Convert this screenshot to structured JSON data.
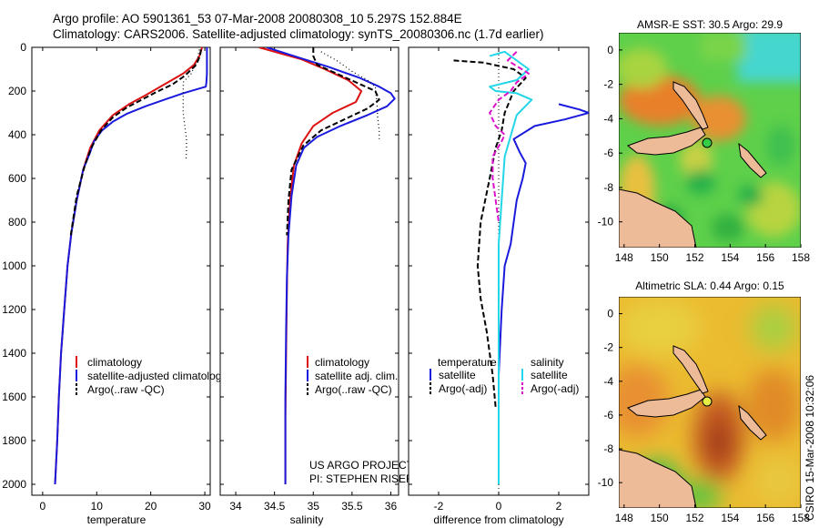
{
  "header": {
    "line1": "Argo profile: AO 5901361_53 07-Mar-2008 20080308_10 5.297S 152.884E",
    "line2": "Climatology: CARS2006. Satellite-adjusted climatology: synTS_20080306.nc (1.7d earlier)"
  },
  "side_stamp": "CSIRO 15-Mar-2008 10:32:06",
  "colors": {
    "climatology": "#dd1111",
    "satellite": "#1a1adc",
    "argo": "#000000",
    "sat_salinity": "#22d6e8",
    "argo_salinity": "#dd11cc",
    "land": "#eebb99",
    "deep_red": "#b8401a",
    "map_green": "#39c94a",
    "map_cyan": "#40d6d6"
  },
  "chart_data": [
    {
      "type": "line",
      "name": "temperature-profile",
      "xlabel": "temperature",
      "ylabel": "",
      "xlim": [
        -2,
        31
      ],
      "ylim": [
        2050,
        0
      ],
      "xticks": [
        0,
        10,
        20,
        30
      ],
      "yticks": [
        0,
        200,
        400,
        600,
        800,
        1000,
        1200,
        1400,
        1600,
        1800,
        2000
      ],
      "legend": [
        "climatology",
        "satellite-adjusted climatology",
        "Argo(..raw -QC)"
      ],
      "series": [
        {
          "name": "climatology",
          "color": "#dd1111",
          "style": "solid",
          "x": [
            29.5,
            29.0,
            28.0,
            26.0,
            22.5,
            19.0,
            16.0,
            13.0,
            10.5,
            8.8,
            7.5,
            6.3,
            5.3,
            4.6,
            4.0,
            3.4,
            3.0,
            2.7,
            2.4,
            2.3
          ],
          "y": [
            0,
            40,
            80,
            120,
            170,
            220,
            260,
            310,
            380,
            460,
            560,
            700,
            850,
            1000,
            1200,
            1400,
            1600,
            1800,
            1950,
            2000
          ]
        },
        {
          "name": "satellite-adjusted climatology",
          "color": "#1a1adc",
          "style": "solid",
          "x": [
            30.4,
            30.4,
            30.4,
            30.3,
            30.2,
            26.0,
            22.5,
            19.0,
            15.5,
            13.0,
            11.0,
            9.5,
            8.8,
            7.5,
            6.3,
            5.3,
            4.6,
            4.0,
            3.4,
            3.0,
            2.7,
            2.4,
            2.3
          ],
          "y": [
            0,
            60,
            120,
            160,
            180,
            210,
            240,
            270,
            305,
            340,
            380,
            430,
            480,
            560,
            700,
            850,
            1000,
            1200,
            1400,
            1600,
            1800,
            1950,
            2000
          ]
        },
        {
          "name": "Argo(..raw -QC)",
          "color": "#000000",
          "style": "dash",
          "x": [
            29.3,
            29.1,
            28.4,
            26.3,
            24.0,
            21.0,
            18.3,
            15.6,
            13.0,
            10.8,
            9.0,
            7.8,
            6.3,
            5.2
          ],
          "y": [
            10,
            40,
            80,
            130,
            170,
            205,
            240,
            275,
            320,
            380,
            460,
            540,
            680,
            860
          ]
        },
        {
          "name": "raw-dotted",
          "color": "#000000",
          "style": "dot",
          "x": [
            29.0,
            28.6,
            27.5,
            26.0,
            26.0,
            26.0,
            26.3,
            26.6,
            26.6,
            26.5
          ],
          "y": [
            10,
            60,
            120,
            160,
            230,
            300,
            360,
            420,
            480,
            520
          ]
        }
      ]
    },
    {
      "type": "line",
      "name": "salinity-profile",
      "xlabel": "salinity",
      "xlim": [
        33.8,
        36.1
      ],
      "ylim": [
        2050,
        0
      ],
      "xticks": [
        34,
        34.5,
        35,
        35.5,
        36
      ],
      "legend": [
        "climatology",
        "satellite adj. clim.",
        "Argo(..raw -QC)"
      ],
      "annotations": [
        "US ARGO PROJECT",
        "PI: STEPHEN RISER"
      ],
      "series": [
        {
          "name": "climatology",
          "color": "#dd1111",
          "style": "solid",
          "x": [
            34.3,
            34.55,
            34.85,
            35.15,
            35.45,
            35.62,
            35.55,
            35.25,
            35.0,
            34.85,
            34.75,
            34.7,
            34.67,
            34.66,
            34.65,
            34.64,
            34.64,
            34.64
          ],
          "y": [
            0,
            25,
            55,
            100,
            150,
            200,
            250,
            300,
            360,
            440,
            540,
            700,
            900,
            1100,
            1400,
            1700,
            1900,
            2000
          ]
        },
        {
          "name": "satellite adj. clim.",
          "color": "#1a1adc",
          "style": "solid",
          "x": [
            34.4,
            34.75,
            35.2,
            35.6,
            35.85,
            36.0,
            36.05,
            35.95,
            35.7,
            35.35,
            35.05,
            34.88,
            34.78,
            34.72,
            34.68,
            34.66,
            34.65,
            34.64,
            34.64,
            34.64
          ],
          "y": [
            0,
            40,
            90,
            140,
            180,
            210,
            235,
            270,
            310,
            360,
            410,
            460,
            540,
            680,
            860,
            1050,
            1300,
            1600,
            1850,
            2000
          ]
        },
        {
          "name": "Argo(..raw -QC)",
          "color": "#000000",
          "style": "dash",
          "x": [
            35.0,
            35.0,
            35.05,
            35.3,
            35.55,
            35.8,
            35.85,
            35.7,
            35.4,
            35.1,
            34.87,
            34.72,
            34.68,
            34.66
          ],
          "y": [
            0,
            40,
            80,
            120,
            160,
            200,
            240,
            280,
            330,
            380,
            450,
            560,
            700,
            860
          ]
        },
        {
          "name": "raw-dotted",
          "color": "#000000",
          "style": "dot",
          "x": [
            35.1,
            35.3,
            35.5,
            35.7,
            35.8,
            35.82,
            35.83,
            35.85,
            35.85
          ],
          "y": [
            20,
            60,
            110,
            150,
            180,
            250,
            320,
            380,
            420
          ]
        }
      ]
    },
    {
      "type": "line",
      "name": "difference-profile",
      "xlabel": "difference from climatology",
      "xlim": [
        -3.0,
        3.0
      ],
      "ylim": [
        2050,
        0
      ],
      "xticks": [
        -2,
        0,
        2
      ],
      "legend": [
        "temperature",
        "satellite",
        "Argo(-adj)",
        "salinity",
        "satellite",
        "Argo(-adj)"
      ],
      "series": [
        {
          "name": "temperature satellite",
          "color": "#1a1adc",
          "style": "solid",
          "x": [
            2.0,
            2.7,
            3.0,
            2.2,
            1.2,
            0.5,
            0.7,
            0.9,
            0.8,
            0.6,
            0.5,
            0.4,
            0.2,
            0.1,
            0.0,
            0.0,
            0.0
          ],
          "y": [
            260,
            285,
            300,
            330,
            360,
            420,
            480,
            530,
            600,
            700,
            800,
            900,
            1000,
            1200,
            1500,
            1800,
            2000
          ]
        },
        {
          "name": "temperature Argo(-adj)",
          "color": "#000000",
          "style": "dash",
          "x": [
            -1.5,
            -0.5,
            0.5,
            0.9,
            0.5,
            0.2,
            0.1,
            -0.1,
            -0.3,
            -0.6,
            -0.7,
            -0.6,
            -0.4,
            -0.2,
            -0.1
          ],
          "y": [
            60,
            70,
            100,
            140,
            200,
            300,
            380,
            460,
            600,
            800,
            1000,
            1150,
            1300,
            1500,
            1650
          ]
        },
        {
          "name": "salinity satellite",
          "color": "#22d6e8",
          "style": "solid",
          "x": [
            -0.3,
            0.2,
            1.0,
            0.6,
            -0.3,
            -0.1,
            0.6,
            1.1,
            0.6,
            0.2,
            0.1,
            0.0,
            0.0,
            0.0,
            0.0
          ],
          "y": [
            40,
            20,
            100,
            150,
            180,
            200,
            210,
            240,
            310,
            500,
            700,
            900,
            1200,
            1600,
            2000
          ]
        },
        {
          "name": "salinity Argo(-adj)",
          "color": "#dd11cc",
          "style": "dash",
          "x": [
            0.6,
            0.3,
            1.0,
            0.6,
            0.4,
            0.0,
            -0.3,
            -0.1,
            0.2,
            0.1,
            -0.2,
            -0.2,
            -0.1,
            0.0
          ],
          "y": [
            20,
            60,
            120,
            160,
            200,
            240,
            300,
            360,
            400,
            430,
            500,
            600,
            700,
            800
          ]
        }
      ]
    },
    {
      "type": "heatmap",
      "name": "amsre-sst-map",
      "title": "AMSR-E SST: 30.5 Argo: 29.9",
      "xlim": [
        147.7,
        158
      ],
      "ylim": [
        -11.5,
        1
      ],
      "xticks": [
        148,
        150,
        152,
        154,
        156,
        158
      ],
      "yticks": [
        0,
        -2,
        -4,
        -6,
        -8,
        -10
      ],
      "profile_location": [
        152.884,
        -5.297
      ],
      "marker_color": "#33cc44"
    },
    {
      "type": "heatmap",
      "name": "altimetric-sla-map",
      "title": "Altimetric SLA: 0.44 Argo: 0.15",
      "xlim": [
        147.7,
        158
      ],
      "ylim": [
        -11.5,
        1
      ],
      "xticks": [
        148,
        150,
        152,
        154,
        156,
        158
      ],
      "yticks": [
        0,
        -2,
        -4,
        -6,
        -8,
        -10
      ],
      "profile_location": [
        152.884,
        -5.297
      ],
      "marker_color": "#e5ee44"
    }
  ]
}
